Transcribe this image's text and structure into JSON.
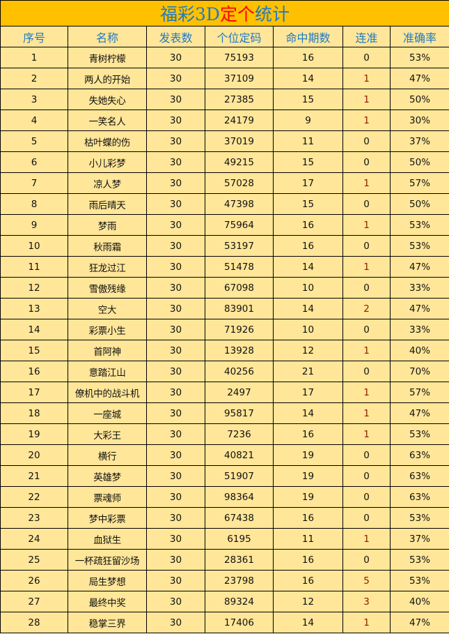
{
  "title": {
    "part1": "福彩3D",
    "part2": "定个",
    "part3": "统计"
  },
  "colors": {
    "title_bg": "#ffc000",
    "row_bg": "#ffe699",
    "header_text": "#1f7ac4",
    "title_highlight": "#ff0000"
  },
  "columns": [
    "序号",
    "名称",
    "发表数",
    "个位定码",
    "命中期数",
    "连准",
    "准确率"
  ],
  "rows": [
    [
      "1",
      "青树柠檬",
      "30",
      "75193",
      "16",
      "0",
      "53%"
    ],
    [
      "2",
      "两人的开始",
      "30",
      "37109",
      "14",
      "1",
      "47%"
    ],
    [
      "3",
      "失她失心",
      "30",
      "27385",
      "15",
      "1",
      "50%"
    ],
    [
      "4",
      "一笑名人",
      "30",
      "24179",
      "9",
      "1",
      "30%"
    ],
    [
      "5",
      "枯叶蝶的伤",
      "30",
      "37019",
      "11",
      "0",
      "37%"
    ],
    [
      "6",
      "小儿彩梦",
      "30",
      "49215",
      "15",
      "0",
      "50%"
    ],
    [
      "7",
      "凉人梦",
      "30",
      "57028",
      "17",
      "1",
      "57%"
    ],
    [
      "8",
      "雨后晴天",
      "30",
      "47398",
      "15",
      "0",
      "50%"
    ],
    [
      "9",
      "梦雨",
      "30",
      "75964",
      "16",
      "1",
      "53%"
    ],
    [
      "10",
      "秋雨霜",
      "30",
      "53197",
      "16",
      "0",
      "53%"
    ],
    [
      "11",
      "狂龙过江",
      "30",
      "51478",
      "14",
      "1",
      "47%"
    ],
    [
      "12",
      "雪傲残缘",
      "30",
      "67098",
      "10",
      "0",
      "33%"
    ],
    [
      "13",
      "空大",
      "30",
      "83901",
      "14",
      "2",
      "47%"
    ],
    [
      "14",
      "彩票小生",
      "30",
      "71926",
      "10",
      "0",
      "33%"
    ],
    [
      "15",
      "首阿神",
      "30",
      "13928",
      "12",
      "1",
      "40%"
    ],
    [
      "16",
      "意踏江山",
      "30",
      "40256",
      "21",
      "0",
      "70%"
    ],
    [
      "17",
      "僚机中的战斗机",
      "30",
      "2497",
      "17",
      "1",
      "57%"
    ],
    [
      "18",
      "一座城",
      "30",
      "95817",
      "14",
      "1",
      "47%"
    ],
    [
      "19",
      "大彩王",
      "30",
      "7236",
      "16",
      "1",
      "53%"
    ],
    [
      "20",
      "横行",
      "30",
      "40821",
      "19",
      "0",
      "63%"
    ],
    [
      "21",
      "英雄梦",
      "30",
      "51907",
      "19",
      "0",
      "63%"
    ],
    [
      "22",
      "票魂师",
      "30",
      "98364",
      "19",
      "0",
      "63%"
    ],
    [
      "23",
      "梦中彩票",
      "30",
      "67438",
      "16",
      "0",
      "53%"
    ],
    [
      "24",
      "血狱生",
      "30",
      "6195",
      "11",
      "1",
      "37%"
    ],
    [
      "25",
      "一杯疏狂留沙场",
      "30",
      "28361",
      "16",
      "0",
      "53%"
    ],
    [
      "26",
      "局生梦想",
      "30",
      "23798",
      "16",
      "5",
      "53%"
    ],
    [
      "27",
      "最终中奖",
      "30",
      "89324",
      "12",
      "3",
      "40%"
    ],
    [
      "28",
      "稳掌三界",
      "30",
      "17406",
      "14",
      "1",
      "47%"
    ]
  ]
}
